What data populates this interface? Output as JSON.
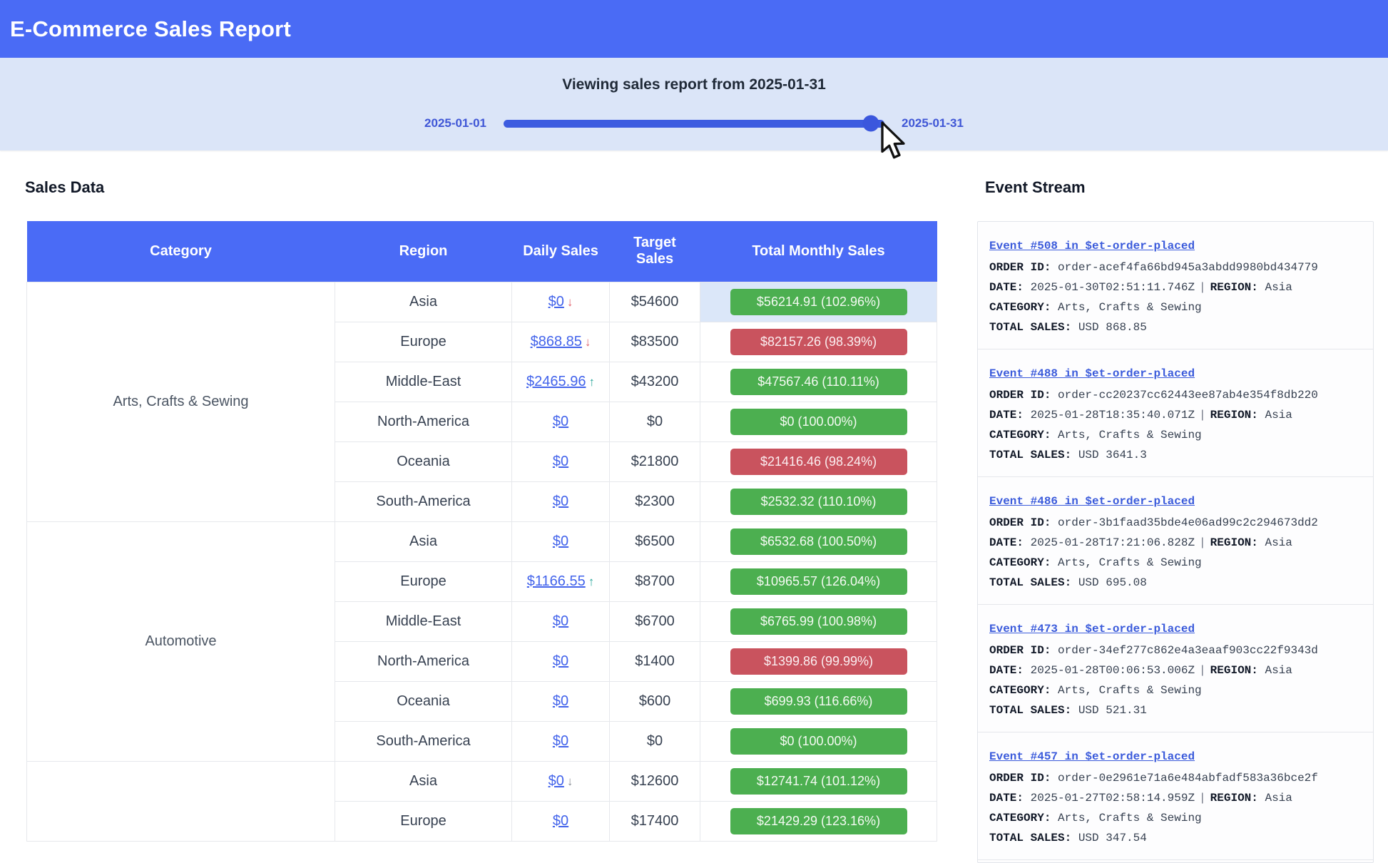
{
  "header": {
    "title": "E-Commerce Sales Report"
  },
  "slider": {
    "title": "Viewing sales report from 2025-01-31",
    "min_label": "2025-01-01",
    "max_label": "2025-01-31",
    "value_percent": 96.5
  },
  "sales": {
    "heading": "Sales Data",
    "columns": [
      "Category",
      "Region",
      "Daily Sales",
      "Target Sales",
      "Total Monthly Sales"
    ],
    "groups": [
      {
        "category": "Arts, Crafts & Sewing",
        "rows": [
          {
            "region": "Asia",
            "daily": "$0",
            "trend": "down-red",
            "trend_glyph": "↓",
            "target": "$54600",
            "total": "$56214.91 (102.96%)",
            "status": "ok",
            "highlight": true
          },
          {
            "region": "Europe",
            "daily": "$868.85",
            "trend": "down-red",
            "trend_glyph": "↓",
            "target": "$83500",
            "total": "$82157.26 (98.39%)",
            "status": "miss",
            "highlight": false
          },
          {
            "region": "Middle-East",
            "daily": "$2465.96",
            "trend": "up-teal",
            "trend_glyph": "↑",
            "target": "$43200",
            "total": "$47567.46 (110.11%)",
            "status": "ok",
            "highlight": false
          },
          {
            "region": "North-America",
            "daily": "$0",
            "trend": null,
            "trend_glyph": "",
            "target": "$0",
            "total": "$0 (100.00%)",
            "status": "ok",
            "highlight": false
          },
          {
            "region": "Oceania",
            "daily": "$0",
            "trend": null,
            "trend_glyph": "",
            "target": "$21800",
            "total": "$21416.46 (98.24%)",
            "status": "miss",
            "highlight": false
          },
          {
            "region": "South-America",
            "daily": "$0",
            "trend": null,
            "trend_glyph": "",
            "target": "$2300",
            "total": "$2532.32 (110.10%)",
            "status": "ok",
            "highlight": false
          }
        ]
      },
      {
        "category": "Automotive",
        "rows": [
          {
            "region": "Asia",
            "daily": "$0",
            "trend": null,
            "trend_glyph": "",
            "target": "$6500",
            "total": "$6532.68 (100.50%)",
            "status": "ok",
            "highlight": false
          },
          {
            "region": "Europe",
            "daily": "$1166.55",
            "trend": "up-teal",
            "trend_glyph": "↑",
            "target": "$8700",
            "total": "$10965.57 (126.04%)",
            "status": "ok",
            "highlight": false
          },
          {
            "region": "Middle-East",
            "daily": "$0",
            "trend": null,
            "trend_glyph": "",
            "target": "$6700",
            "total": "$6765.99 (100.98%)",
            "status": "ok",
            "highlight": false
          },
          {
            "region": "North-America",
            "daily": "$0",
            "trend": null,
            "trend_glyph": "",
            "target": "$1400",
            "total": "$1399.86 (99.99%)",
            "status": "miss",
            "highlight": false
          },
          {
            "region": "Oceania",
            "daily": "$0",
            "trend": null,
            "trend_glyph": "",
            "target": "$600",
            "total": "$699.93 (116.66%)",
            "status": "ok",
            "highlight": false
          },
          {
            "region": "South-America",
            "daily": "$0",
            "trend": null,
            "trend_glyph": "",
            "target": "$0",
            "total": "$0 (100.00%)",
            "status": "ok",
            "highlight": false
          }
        ]
      },
      {
        "category": "",
        "rows": [
          {
            "region": "Asia",
            "daily": "$0",
            "trend": "down-gray",
            "trend_glyph": "↓",
            "target": "$12600",
            "total": "$12741.74 (101.12%)",
            "status": "ok",
            "highlight": false
          },
          {
            "region": "Europe",
            "daily": "$0",
            "trend": null,
            "trend_glyph": "",
            "target": "$17400",
            "total": "$21429.29 (123.16%)",
            "status": "ok",
            "highlight": false
          }
        ]
      }
    ]
  },
  "events": {
    "heading": "Event Stream",
    "labels": {
      "order_id": "ORDER ID:",
      "date": "DATE:",
      "region": "REGION:",
      "category": "CATEGORY:",
      "total_sales": "TOTAL SALES:",
      "separator": "|"
    },
    "items": [
      {
        "title": "Event #508 in $et-order-placed",
        "order_id": "order-acef4fa66bd945a3abdd9980bd434779",
        "date": "2025-01-30T02:51:11.746Z",
        "region": "Asia",
        "category": "Arts, Crafts & Sewing",
        "total_sales": "USD 868.85"
      },
      {
        "title": "Event #488 in $et-order-placed",
        "order_id": "order-cc20237cc62443ee87ab4e354f8db220",
        "date": "2025-01-28T18:35:40.071Z",
        "region": "Asia",
        "category": "Arts, Crafts & Sewing",
        "total_sales": "USD 3641.3"
      },
      {
        "title": "Event #486 in $et-order-placed",
        "order_id": "order-3b1faad35bde4e06ad99c2c294673dd2",
        "date": "2025-01-28T17:21:06.828Z",
        "region": "Asia",
        "category": "Arts, Crafts & Sewing",
        "total_sales": "USD 695.08"
      },
      {
        "title": "Event #473 in $et-order-placed",
        "order_id": "order-34ef277c862e4a3eaaf903cc22f9343d",
        "date": "2025-01-28T00:06:53.006Z",
        "region": "Asia",
        "category": "Arts, Crafts & Sewing",
        "total_sales": "USD 521.31"
      },
      {
        "title": "Event #457 in $et-order-placed",
        "order_id": "order-0e2961e71a6e484abfadf583a36bce2f",
        "date": "2025-01-27T02:58:14.959Z",
        "region": "Asia",
        "category": "Arts, Crafts & Sewing",
        "total_sales": "USD 347.54"
      }
    ]
  },
  "colors": {
    "header_blue": "#4a6bf5",
    "slider_strip": "#dbe5f8",
    "slider_blue": "#3d5ce0",
    "badge_green": "#4caf50",
    "badge_red": "#c9535e",
    "link_blue": "#4263eb",
    "event_link_blue": "#3b5bdb"
  }
}
